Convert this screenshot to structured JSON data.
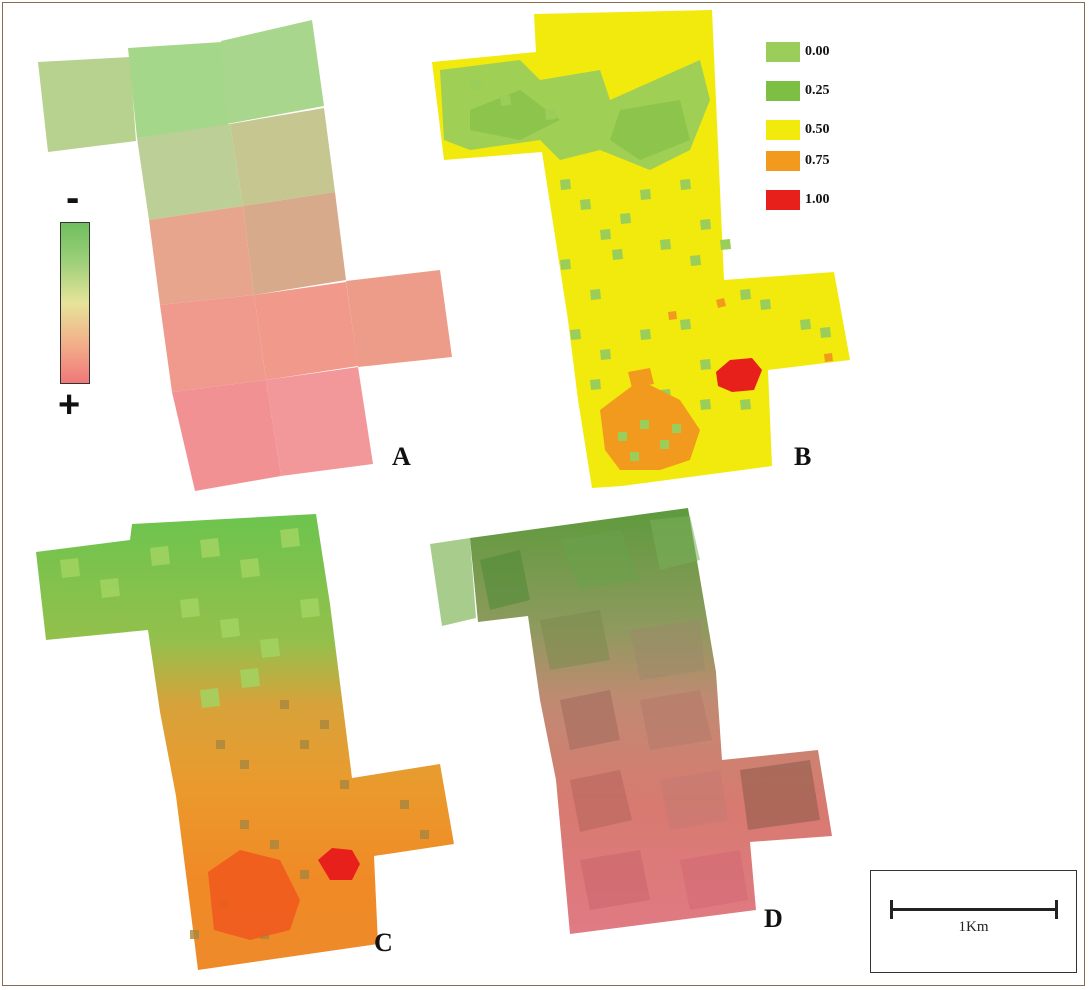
{
  "panels": [
    {
      "id": "A",
      "label": "A"
    },
    {
      "id": "B",
      "label": "B"
    },
    {
      "id": "C",
      "label": "C"
    },
    {
      "id": "D",
      "label": "D"
    }
  ],
  "gradient_legend": {
    "top_sign": "-",
    "bottom_sign": "+",
    "colors": [
      "#6fbf5e",
      "#e6e49a",
      "#f0787a"
    ]
  },
  "class_legend": [
    {
      "label": "0.00",
      "color": "#9acd5a"
    },
    {
      "label": "0.25",
      "color": "#7cbf44"
    },
    {
      "label": "0.50",
      "color": "#f2ea0c"
    },
    {
      "label": "0.75",
      "color": "#f29a1e"
    },
    {
      "label": "1.00",
      "color": "#e8201c"
    }
  ],
  "scale_bar": {
    "label": "1Km"
  }
}
